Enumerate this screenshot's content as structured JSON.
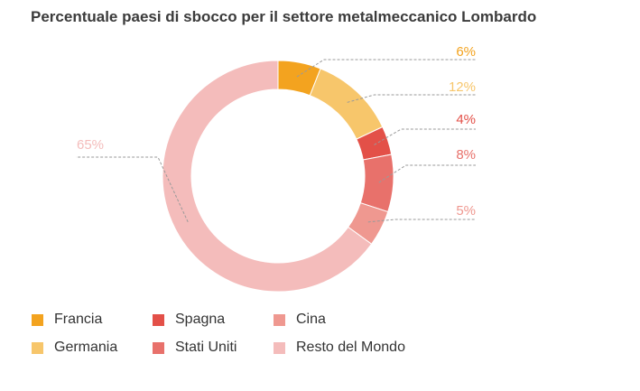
{
  "title": "Percentuale paesi di sbocco per il settore metalmeccanico Lombardo",
  "chart_data": {
    "type": "pie",
    "variant": "donut",
    "title": "Percentuale paesi di sbocco per il settore metalmeccanico Lombardo",
    "slices": [
      {
        "name": "Francia",
        "value": 6,
        "label": "6%",
        "color": "#f3a31f"
      },
      {
        "name": "Germania",
        "value": 12,
        "label": "12%",
        "color": "#f7c66b"
      },
      {
        "name": "Spagna",
        "value": 4,
        "label": "4%",
        "color": "#e35048"
      },
      {
        "name": "Stati Uniti",
        "value": 8,
        "label": "8%",
        "color": "#e8716b"
      },
      {
        "name": "Cina",
        "value": 5,
        "label": "5%",
        "color": "#ef9890"
      },
      {
        "name": "Resto del Mondo",
        "value": 65,
        "label": "65%",
        "color": "#f4bcbb"
      }
    ]
  }
}
